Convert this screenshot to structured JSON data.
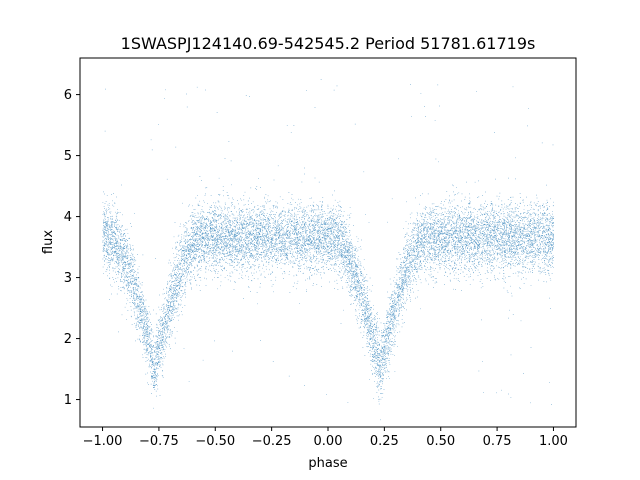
{
  "chart_data": {
    "type": "scatter",
    "title": "1SWASPJ124140.69-542545.2 Period 51781.61719s",
    "xlabel": "phase",
    "ylabel": "flux",
    "xlim": [
      -1.1,
      1.1
    ],
    "ylim": [
      0.55,
      6.6
    ],
    "x_ticks": [
      -1.0,
      -0.75,
      -0.5,
      -0.25,
      0.0,
      0.25,
      0.5,
      0.75,
      1.0
    ],
    "x_tick_labels": [
      "−1.00",
      "−0.75",
      "−0.50",
      "−0.25",
      "0.00",
      "0.25",
      "0.50",
      "0.75",
      "1.00"
    ],
    "y_ticks": [
      1,
      2,
      3,
      4,
      5,
      6
    ],
    "y_tick_labels": [
      "1",
      "2",
      "3",
      "4",
      "5",
      "6"
    ],
    "grid": false,
    "point_color": "#1f77b4",
    "series": [
      {
        "phase_range": [
          -1.0,
          1.0
        ],
        "baseline_flux": 3.65,
        "baseline_scatter": 0.28,
        "eclipses": [
          {
            "center_phase": -0.77,
            "min_flux": 1.5,
            "half_width": 0.2
          },
          {
            "center_phase": 0.23,
            "min_flux": 1.5,
            "half_width": 0.2
          }
        ],
        "outlier_flux_range": [
          0.85,
          6.3
        ],
        "approx_point_count": 14000
      }
    ]
  }
}
